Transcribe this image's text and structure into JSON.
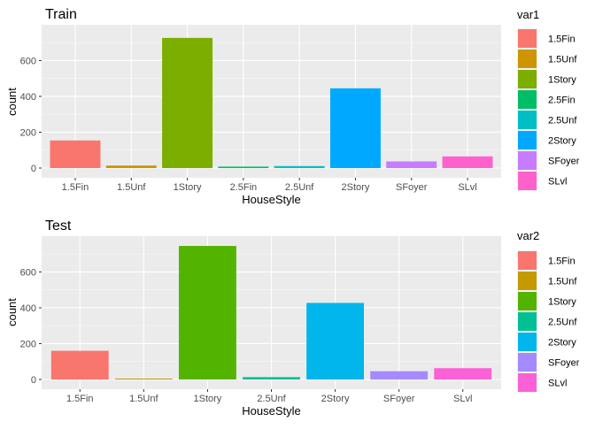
{
  "colors": {
    "1.5Fin": "#F8766D",
    "1.5Unf": "#C49A00",
    "1Story": "#53B400",
    "2.5Fin": "#00C094",
    "2.5Unf": "#00B6EB",
    "2Story": "#A58AFF",
    "SFoyer": "#FB61D7",
    "SLvl": "#FB61D7"
  },
  "chart_data": [
    {
      "type": "bar",
      "title": "Train",
      "xlabel": "HouseStyle",
      "ylabel": "count",
      "ylim": [
        0,
        760
      ],
      "yticks": [
        0,
        200,
        400,
        600
      ],
      "grid": true,
      "legend_position": "right",
      "legend_title": "var1",
      "categories": [
        "1.5Fin",
        "1.5Unf",
        "1Story",
        "2.5Fin",
        "2.5Unf",
        "2Story",
        "SFoyer",
        "SLvl"
      ],
      "values": [
        154,
        14,
        726,
        8,
        11,
        445,
        37,
        65
      ],
      "colors": [
        "#F8766D",
        "#CD9600",
        "#7CAE00",
        "#00BE67",
        "#00BFC4",
        "#00A9FF",
        "#C77CFF",
        "#FF61CC"
      ]
    },
    {
      "type": "bar",
      "title": "Test",
      "xlabel": "HouseStyle",
      "ylabel": "count",
      "ylim": [
        0,
        760
      ],
      "yticks": [
        0,
        200,
        400,
        600
      ],
      "grid": true,
      "legend_position": "right",
      "legend_title": "var2",
      "categories": [
        "1.5Fin",
        "1.5Unf",
        "1Story",
        "2.5Unf",
        "2Story",
        "SFoyer",
        "SLvl"
      ],
      "values": [
        160,
        5,
        745,
        13,
        427,
        46,
        63
      ],
      "colors": [
        "#F8766D",
        "#C49A00",
        "#53B400",
        "#00C094",
        "#00B6EB",
        "#A58AFF",
        "#FB61D7"
      ]
    }
  ]
}
